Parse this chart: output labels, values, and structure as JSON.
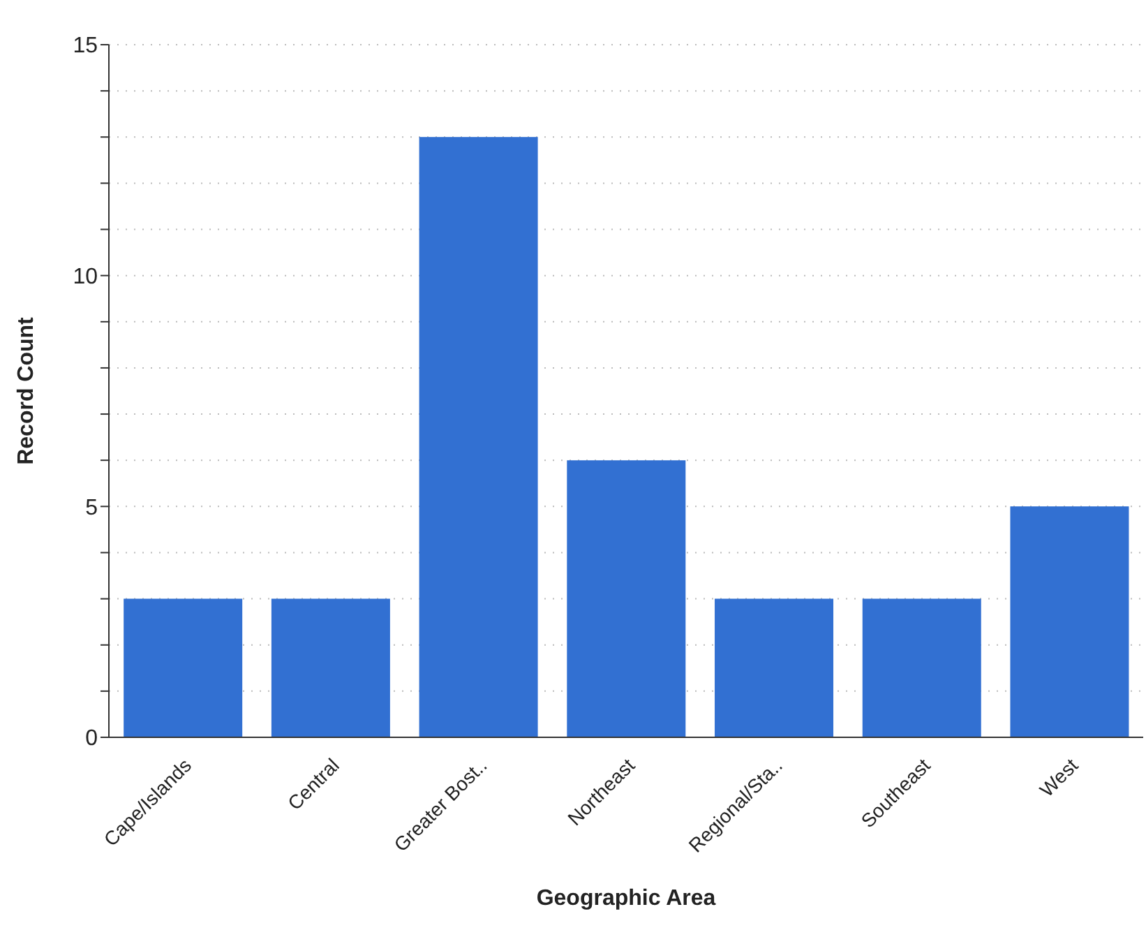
{
  "chart_data": {
    "type": "bar",
    "xlabel": "Geographic Area",
    "ylabel": "Record Count",
    "categories": [
      "Cape/Islands",
      "Central",
      "Greater Bost..",
      "Northeast",
      "Regional/Sta..",
      "Southeast",
      "West"
    ],
    "values": [
      3,
      3,
      13,
      6,
      3,
      3,
      5
    ],
    "color": "#3270d2",
    "ylim": [
      0,
      15
    ],
    "yticks": [
      0,
      {
        "value": 1,
        "label": null
      },
      {
        "value": 2,
        "label": null
      },
      {
        "value": 3,
        "label": null
      },
      {
        "value": 4,
        "label": null
      },
      5,
      {
        "value": 6,
        "label": null
      },
      {
        "value": 7,
        "label": null
      },
      {
        "value": 8,
        "label": null
      },
      {
        "value": 9,
        "label": null
      },
      10,
      {
        "value": 11,
        "label": null
      },
      {
        "value": 12,
        "label": null
      },
      {
        "value": 13,
        "label": null
      },
      {
        "value": 14,
        "label": null
      },
      15
    ],
    "grid": "y"
  }
}
